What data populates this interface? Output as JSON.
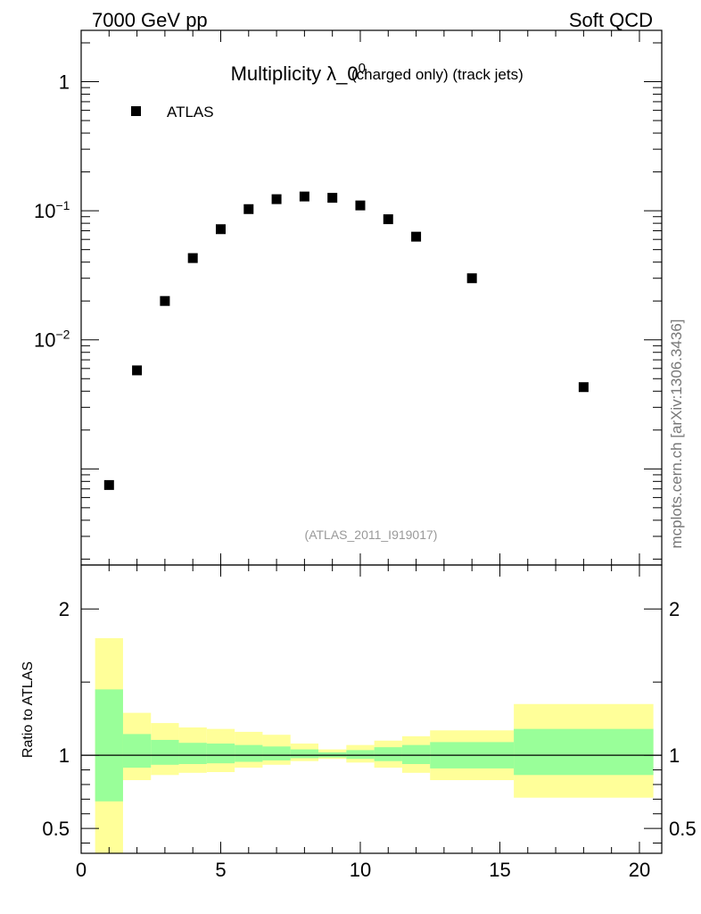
{
  "header": {
    "left": "7000 GeV pp",
    "right": "Soft QCD"
  },
  "side_label": "mcplots.cern.ch [arXiv:1306.3436]",
  "chart_data": [
    {
      "type": "scatter",
      "title_main": "Multiplicity λ_0",
      "title_sup": "0",
      "title_small": "(charged only) (track jets)",
      "watermark": "(ATLAS_2011_I919017)",
      "legend": [
        "ATLAS"
      ],
      "legend_position": "top-left",
      "yscale": "log",
      "xlim": [
        0,
        20.8
      ],
      "ylim": [
        0.00018,
        2.5
      ],
      "y_tick_labels": [
        {
          "base": "1",
          "exp": "",
          "value": 1
        },
        {
          "base": "10",
          "exp": "−1",
          "value": 0.1
        },
        {
          "base": "10",
          "exp": "−2",
          "value": 0.01
        }
      ],
      "series": [
        {
          "name": "ATLAS",
          "marker": "square",
          "color": "#000000",
          "x": [
            1,
            2,
            3,
            4,
            5,
            6,
            7,
            8,
            9,
            10,
            11,
            12,
            14,
            18
          ],
          "y": [
            0.00075,
            0.0058,
            0.02,
            0.043,
            0.072,
            0.103,
            0.123,
            0.129,
            0.126,
            0.11,
            0.086,
            0.063,
            0.03,
            0.0043
          ]
        }
      ]
    },
    {
      "type": "area",
      "ylabel": "Ratio to ATLAS",
      "xlim": [
        0,
        20.8
      ],
      "ylim": [
        0.33,
        2.3
      ],
      "x_tick_labels": [
        "0",
        "5",
        "10",
        "15",
        "20"
      ],
      "x_tick_values": [
        0,
        5,
        10,
        15,
        20
      ],
      "y_tick_labels": [
        "0.5",
        "1",
        "2"
      ],
      "y_tick_values": [
        0.5,
        1,
        2
      ],
      "reference_line": 1,
      "bins": [
        {
          "lo": 0.5,
          "hi": 1.5,
          "yellow": [
            0.33,
            1.8
          ],
          "green": [
            0.685,
            1.45
          ]
        },
        {
          "lo": 1.5,
          "hi": 2.5,
          "yellow": [
            0.83,
            1.29
          ],
          "green": [
            0.915,
            1.145
          ]
        },
        {
          "lo": 2.5,
          "hi": 3.5,
          "yellow": [
            0.865,
            1.22
          ],
          "green": [
            0.935,
            1.105
          ]
        },
        {
          "lo": 3.5,
          "hi": 4.5,
          "yellow": [
            0.88,
            1.19
          ],
          "green": [
            0.94,
            1.085
          ]
        },
        {
          "lo": 4.5,
          "hi": 5.5,
          "yellow": [
            0.885,
            1.18
          ],
          "green": [
            0.945,
            1.08
          ]
        },
        {
          "lo": 5.5,
          "hi": 6.5,
          "yellow": [
            0.915,
            1.16
          ],
          "green": [
            0.955,
            1.07
          ]
        },
        {
          "lo": 6.5,
          "hi": 7.5,
          "yellow": [
            0.935,
            1.14
          ],
          "green": [
            0.965,
            1.06
          ]
        },
        {
          "lo": 7.5,
          "hi": 8.5,
          "yellow": [
            0.96,
            1.08
          ],
          "green": [
            0.98,
            1.04
          ]
        },
        {
          "lo": 8.5,
          "hi": 9.5,
          "yellow": [
            0.975,
            1.04
          ],
          "green": [
            0.985,
            1.02
          ]
        },
        {
          "lo": 9.5,
          "hi": 10.5,
          "yellow": [
            0.95,
            1.07
          ],
          "green": [
            0.975,
            1.035
          ]
        },
        {
          "lo": 10.5,
          "hi": 11.5,
          "yellow": [
            0.915,
            1.1
          ],
          "green": [
            0.96,
            1.055
          ]
        },
        {
          "lo": 11.5,
          "hi": 12.5,
          "yellow": [
            0.88,
            1.13
          ],
          "green": [
            0.94,
            1.07
          ]
        },
        {
          "lo": 12.5,
          "hi": 15.5,
          "yellow": [
            0.83,
            1.17
          ],
          "green": [
            0.91,
            1.09
          ]
        },
        {
          "lo": 15.5,
          "hi": 20.5,
          "yellow": [
            0.71,
            1.35
          ],
          "green": [
            0.865,
            1.18
          ]
        }
      ]
    }
  ],
  "colors": {
    "yellow_band": "#ffff99",
    "green_band": "#99ff99",
    "marker": "#000000",
    "watermark": "#999999",
    "side_label": "#777777"
  }
}
